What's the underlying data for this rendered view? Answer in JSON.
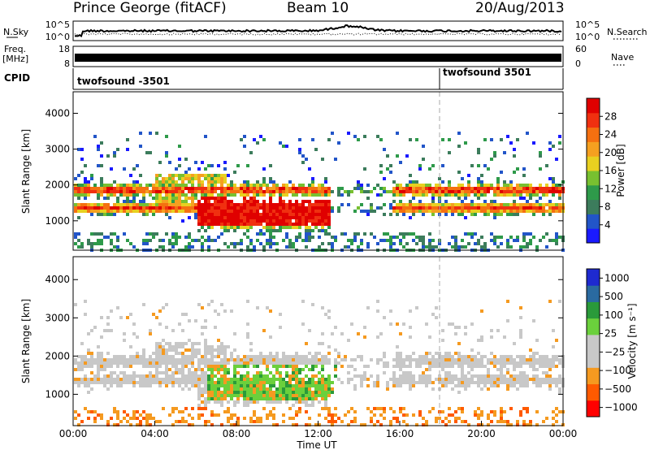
{
  "header": {
    "station": "Prince George (fitACF)",
    "beam": "Beam 10",
    "date": "20/Aug/2013"
  },
  "side_labels": {
    "nsky": "N.Sky",
    "nsearch": "N.Search",
    "freq_line1": "Freq.",
    "freq_line2": "[MHz]",
    "nave": "Nave",
    "cpid": "CPID"
  },
  "noise_panel": {
    "left_ticks": [
      "10^5",
      "10^0"
    ],
    "right_ticks": [
      "10^5",
      "10^0"
    ]
  },
  "freq_panel": {
    "left_ticks": [
      "18",
      "8"
    ],
    "right_ticks": [
      "60",
      "0"
    ]
  },
  "cpid_panel": {
    "segments": [
      {
        "label": "twofsound -3501",
        "start_h": 0
      },
      {
        "label": "twofsound 3501",
        "start_h": 17.9
      }
    ]
  },
  "colors": {
    "power": [
      "#1a1aff",
      "#2255c8",
      "#3c7c5c",
      "#2e9a4a",
      "#78c030",
      "#e8d020",
      "#f5a020",
      "#f57010",
      "#f03010",
      "#e00000"
    ],
    "velocity": [
      "#ff0000",
      "#ff5a00",
      "#f59a20",
      "#c8c8c8",
      "#c8c8c8",
      "#6bd03c",
      "#2a9a3a",
      "#2a6aa0",
      "#1e2ad0"
    ]
  },
  "chart_data": [
    {
      "type": "heatmap",
      "name": "power",
      "ylabel": "Slant Range [km]",
      "y_ticks": [
        1000,
        2000,
        3000,
        4000
      ],
      "ylim": [
        180,
        4600
      ],
      "xlim": [
        0,
        24
      ],
      "colorbar_label": "Power [dB]",
      "colorbar_ticks": [
        4,
        8,
        12,
        16,
        20,
        24,
        28
      ],
      "colorbar_range": [
        0,
        32
      ]
    },
    {
      "type": "heatmap",
      "name": "velocity",
      "ylabel": "Slant Range [km]",
      "y_ticks": [
        1000,
        2000,
        3000,
        4000
      ],
      "ylim": [
        180,
        4600
      ],
      "xlim": [
        0,
        24
      ],
      "xlabel": "Time UT",
      "x_ticks": [
        "00:00",
        "04:00",
        "08:00",
        "12:00",
        "16:00",
        "20:00",
        "00:00"
      ],
      "colorbar_label": "Velocity [m s⁻¹]",
      "colorbar_ticks": [
        "1000",
        "500",
        "100",
        "25",
        "−25",
        "−100",
        "−500",
        "−1000"
      ]
    }
  ]
}
